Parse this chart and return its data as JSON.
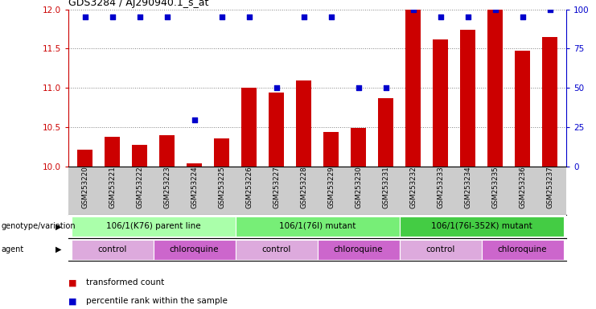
{
  "title": "GDS3284 / AJ290940.1_s_at",
  "samples": [
    "GSM253220",
    "GSM253221",
    "GSM253222",
    "GSM253223",
    "GSM253224",
    "GSM253225",
    "GSM253226",
    "GSM253227",
    "GSM253228",
    "GSM253229",
    "GSM253230",
    "GSM253231",
    "GSM253232",
    "GSM253233",
    "GSM253234",
    "GSM253235",
    "GSM253236",
    "GSM253237"
  ],
  "transformed_count": [
    10.22,
    10.38,
    10.28,
    10.4,
    10.04,
    10.36,
    11.0,
    10.94,
    11.1,
    10.44,
    10.49,
    10.87,
    12.0,
    11.62,
    11.74,
    11.99,
    11.47,
    11.65
  ],
  "percentile_rank": [
    95,
    95,
    95,
    95,
    30,
    95,
    95,
    50,
    95,
    95,
    50,
    50,
    100,
    95,
    95,
    100,
    95,
    100
  ],
  "ylim_left": [
    10,
    12
  ],
  "ylim_right": [
    0,
    100
  ],
  "yticks_left": [
    10,
    10.5,
    11,
    11.5,
    12
  ],
  "yticks_right": [
    0,
    25,
    50,
    75,
    100
  ],
  "bar_color": "#cc0000",
  "percentile_color": "#0000cc",
  "bg_color": "#ffffff",
  "genotype_groups": [
    {
      "label": "106/1(K76) parent line",
      "start": 0,
      "end": 5,
      "color": "#aaffaa"
    },
    {
      "label": "106/1(76I) mutant",
      "start": 6,
      "end": 11,
      "color": "#77ee77"
    },
    {
      "label": "106/1(76I-352K) mutant",
      "start": 12,
      "end": 17,
      "color": "#44cc44"
    }
  ],
  "agent_groups": [
    {
      "label": "control",
      "start": 0,
      "end": 2,
      "color": "#ddaadd"
    },
    {
      "label": "chloroquine",
      "start": 3,
      "end": 5,
      "color": "#cc66cc"
    },
    {
      "label": "control",
      "start": 6,
      "end": 8,
      "color": "#ddaadd"
    },
    {
      "label": "chloroquine",
      "start": 9,
      "end": 11,
      "color": "#cc66cc"
    },
    {
      "label": "control",
      "start": 12,
      "end": 14,
      "color": "#ddaadd"
    },
    {
      "label": "chloroquine",
      "start": 15,
      "end": 17,
      "color": "#cc66cc"
    }
  ],
  "legend_items": [
    {
      "label": "transformed count",
      "color": "#cc0000"
    },
    {
      "label": "percentile rank within the sample",
      "color": "#0000cc"
    }
  ],
  "ylabel_left_color": "#cc0000",
  "ylabel_right_color": "#0000cc",
  "xtick_bg": "#cccccc"
}
